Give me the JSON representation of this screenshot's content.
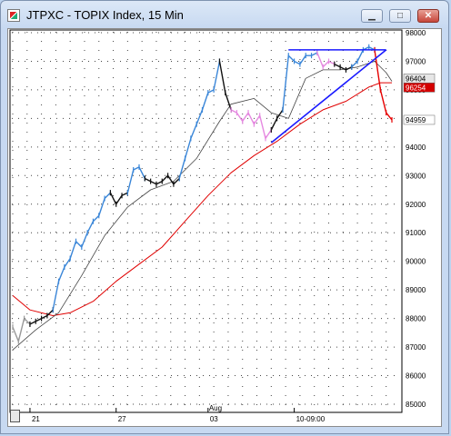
{
  "window": {
    "title": "JTPXC - TOPIX Index, 15 Min",
    "minimize_label": "▁",
    "maximize_label": "□",
    "close_label": "✕"
  },
  "chart_data": {
    "type": "line",
    "title": "JTPXC - TOPIX Index, 15 Min",
    "ylim": [
      84500,
      98000
    ],
    "grid": "dotted",
    "y_ticks": [
      {
        "value": 98000,
        "label": "98000"
      },
      {
        "value": 97000,
        "label": "97000"
      },
      {
        "value": 96000,
        "label": "96000"
      },
      {
        "value": 95000,
        "label": "95000"
      },
      {
        "value": 94000,
        "label": "94000"
      },
      {
        "value": 93000,
        "label": "93000"
      },
      {
        "value": 92000,
        "label": "92000"
      },
      {
        "value": 91000,
        "label": "91000"
      },
      {
        "value": 90000,
        "label": "90000"
      },
      {
        "value": 89000,
        "label": "89000"
      },
      {
        "value": 88000,
        "label": "88000"
      },
      {
        "value": 87000,
        "label": "87000"
      },
      {
        "value": 86000,
        "label": "86000"
      },
      {
        "value": 85000,
        "label": "85000"
      }
    ],
    "x_ticks": [
      {
        "index": 3,
        "label": "21"
      },
      {
        "index": 18,
        "label": "27"
      },
      {
        "index": 34,
        "label": "03"
      },
      {
        "index": 49,
        "label": "10-09:00"
      }
    ],
    "x_month_label": {
      "index": 34,
      "label": "Aug"
    },
    "price_labels": [
      {
        "value": 96400,
        "label": "96404",
        "bg": "#e6e6e6",
        "fg": "#000000"
      },
      {
        "value": 96250,
        "label": "96254",
        "bg": "#d40000",
        "fg": "#ffffff"
      },
      {
        "value": 94950,
        "label": "94959",
        "bg": "#ffffff",
        "fg": "#000000"
      }
    ],
    "price_series": [
      {
        "name": "",
        "color": "#999999",
        "points": [
          [
            0,
            87700
          ],
          [
            1,
            87200
          ],
          [
            2,
            88000
          ],
          [
            3,
            87800
          ]
        ]
      },
      {
        "name": "",
        "color": "#111111",
        "points": [
          [
            3,
            87800
          ],
          [
            4,
            87900
          ],
          [
            5,
            88000
          ],
          [
            6,
            88100
          ],
          [
            7,
            88300
          ]
        ]
      },
      {
        "name": "",
        "color": "#3a86d8",
        "points": [
          [
            7,
            88300
          ],
          [
            8,
            89300
          ],
          [
            9,
            89800
          ],
          [
            10,
            90100
          ],
          [
            11,
            90700
          ],
          [
            12,
            90500
          ],
          [
            13,
            91000
          ],
          [
            14,
            91400
          ],
          [
            15,
            91600
          ],
          [
            16,
            92200
          ],
          [
            17,
            92400
          ]
        ]
      },
      {
        "name": "",
        "color": "#111111",
        "points": [
          [
            17,
            92400
          ],
          [
            18,
            92000
          ],
          [
            19,
            92300
          ],
          [
            20,
            92400
          ]
        ]
      },
      {
        "name": "",
        "color": "#3a86d8",
        "points": [
          [
            20,
            92400
          ],
          [
            21,
            93200
          ],
          [
            22,
            93300
          ],
          [
            23,
            92900
          ]
        ]
      },
      {
        "name": "",
        "color": "#111111",
        "points": [
          [
            23,
            92900
          ],
          [
            24,
            92800
          ],
          [
            25,
            92700
          ],
          [
            26,
            92800
          ],
          [
            27,
            93000
          ],
          [
            28,
            92700
          ],
          [
            29,
            92900
          ]
        ]
      },
      {
        "name": "",
        "color": "#3a86d8",
        "points": [
          [
            29,
            92900
          ],
          [
            30,
            93600
          ],
          [
            31,
            94300
          ],
          [
            32,
            94800
          ],
          [
            33,
            95300
          ],
          [
            34,
            95900
          ],
          [
            35,
            96000
          ],
          [
            36,
            97000
          ]
        ]
      },
      {
        "name": "",
        "color": "#111111",
        "points": [
          [
            36,
            97000
          ],
          [
            37,
            95900
          ],
          [
            38,
            95300
          ]
        ]
      },
      {
        "name": "",
        "color": "#e589e0",
        "points": [
          [
            38,
            95300
          ],
          [
            39,
            95200
          ],
          [
            40,
            94900
          ],
          [
            41,
            95200
          ],
          [
            42,
            94800
          ],
          [
            43,
            95100
          ],
          [
            44,
            94300
          ],
          [
            45,
            94600
          ]
        ]
      },
      {
        "name": "",
        "color": "#111111",
        "points": [
          [
            45,
            94600
          ],
          [
            46,
            95000
          ],
          [
            47,
            95300
          ]
        ]
      },
      {
        "name": "",
        "color": "#3a86d8",
        "points": [
          [
            47,
            95300
          ],
          [
            48,
            97200
          ],
          [
            49,
            97000
          ],
          [
            50,
            96900
          ],
          [
            51,
            97200
          ],
          [
            52,
            97200
          ],
          [
            53,
            97300
          ]
        ]
      },
      {
        "name": "",
        "color": "#e589e0",
        "points": [
          [
            53,
            97300
          ],
          [
            54,
            96800
          ],
          [
            55,
            97000
          ],
          [
            56,
            96900
          ]
        ]
      },
      {
        "name": "",
        "color": "#111111",
        "points": [
          [
            56,
            96900
          ],
          [
            57,
            96800
          ],
          [
            58,
            96700
          ],
          [
            59,
            96800
          ]
        ]
      },
      {
        "name": "",
        "color": "#3a86d8",
        "points": [
          [
            59,
            96800
          ],
          [
            60,
            97000
          ],
          [
            61,
            97400
          ],
          [
            62,
            97500
          ],
          [
            63,
            97400
          ]
        ]
      },
      {
        "name": "",
        "color": "#e60000",
        "points": [
          [
            63,
            97400
          ],
          [
            64,
            96000
          ],
          [
            65,
            95200
          ],
          [
            66,
            94950
          ]
        ]
      }
    ],
    "short_ma": {
      "name": "",
      "color": "#444444",
      "points": [
        [
          0,
          86900
        ],
        [
          4,
          87600
        ],
        [
          8,
          88200
        ],
        [
          12,
          89500
        ],
        [
          16,
          90900
        ],
        [
          20,
          91900
        ],
        [
          24,
          92500
        ],
        [
          28,
          92800
        ],
        [
          32,
          93600
        ],
        [
          36,
          94900
        ],
        [
          38,
          95500
        ],
        [
          42,
          95700
        ],
        [
          45,
          95200
        ],
        [
          48,
          95000
        ],
        [
          51,
          96400
        ],
        [
          54,
          96700
        ],
        [
          57,
          96700
        ],
        [
          60,
          96800
        ],
        [
          63,
          97000
        ],
        [
          65,
          96600
        ],
        [
          66,
          96300
        ]
      ]
    },
    "long_ma": {
      "name": "",
      "color": "#e00000",
      "points": [
        [
          0,
          88800
        ],
        [
          3,
          88300
        ],
        [
          7,
          88100
        ],
        [
          10,
          88200
        ],
        [
          14,
          88600
        ],
        [
          18,
          89300
        ],
        [
          22,
          89900
        ],
        [
          26,
          90500
        ],
        [
          30,
          91400
        ],
        [
          34,
          92300
        ],
        [
          38,
          93100
        ],
        [
          42,
          93700
        ],
        [
          46,
          94200
        ],
        [
          50,
          94800
        ],
        [
          54,
          95300
        ],
        [
          58,
          95600
        ],
        [
          62,
          96100
        ],
        [
          64,
          96250
        ],
        [
          66,
          96250
        ]
      ]
    },
    "drawn_lines": [
      {
        "name": "",
        "color": "#1a1aff",
        "from": [
          45,
          94150
        ],
        "to": [
          65,
          97400
        ]
      },
      {
        "name": "",
        "color": "#1a1aff",
        "from": [
          48,
          97400
        ],
        "to": [
          65,
          97400
        ]
      }
    ]
  }
}
